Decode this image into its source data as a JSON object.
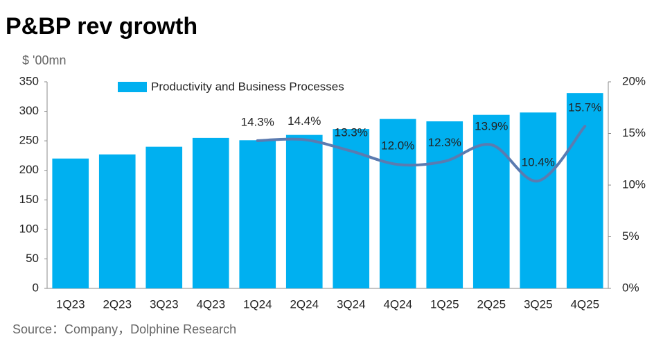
{
  "chart_data": {
    "type": "bar",
    "title": "P&BP rev growth",
    "unit": "$ '00mn",
    "source": "Source：Company，Dolphine Research",
    "categories": [
      "1Q23",
      "2Q23",
      "3Q23",
      "4Q23",
      "1Q24",
      "2Q24",
      "3Q24",
      "4Q24",
      "1Q25",
      "2Q25",
      "3Q25",
      "4Q25"
    ],
    "series": [
      {
        "name": "Productivity and Business Processes",
        "type": "bar",
        "color": "#00b0f0",
        "values": [
          220,
          227,
          240,
          255,
          251,
          260,
          270,
          287,
          283,
          294,
          298,
          331
        ]
      },
      {
        "type": "line",
        "axis": "y2",
        "color": "#5b7bb0",
        "values": [
          null,
          null,
          null,
          null,
          14.3,
          14.4,
          13.3,
          12.0,
          12.3,
          13.9,
          10.4,
          15.7
        ],
        "value_labels": [
          null,
          null,
          null,
          null,
          "14.3%",
          "14.4%",
          "13.3%",
          "12.0%",
          "12.3%",
          "13.9%",
          "10.4%",
          "15.7%"
        ]
      }
    ],
    "ylim": [
      0,
      350
    ],
    "yticks": [
      0,
      50,
      100,
      150,
      200,
      250,
      300,
      350
    ],
    "y2lim": [
      0,
      20
    ],
    "y2ticks": [
      {
        "value": 0,
        "label": "0%"
      },
      {
        "value": 5,
        "label": "5%"
      },
      {
        "value": 10,
        "label": "10%"
      },
      {
        "value": 15,
        "label": "15%"
      },
      {
        "value": 20,
        "label": "20%"
      }
    ],
    "legend": "top"
  }
}
